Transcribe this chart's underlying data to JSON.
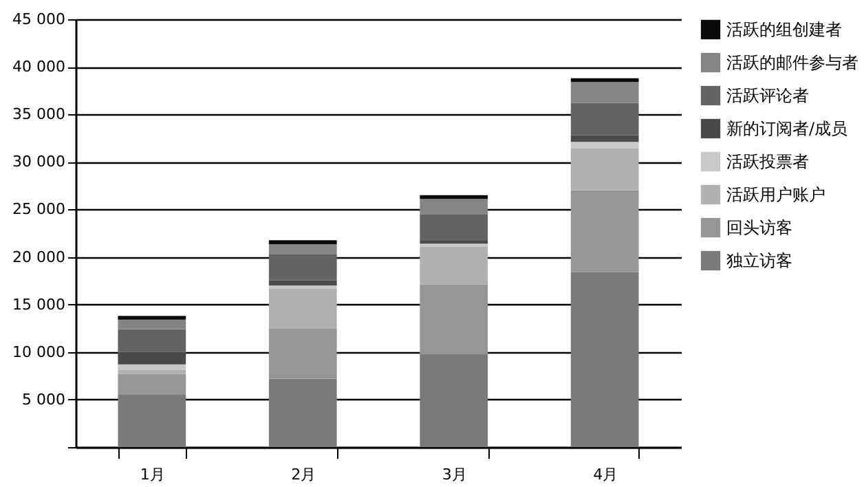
{
  "chart_data": {
    "type": "bar",
    "stacked": true,
    "categories": [
      "1月",
      "2月",
      "3月",
      "4月"
    ],
    "series": [
      {
        "name": "独立访客",
        "color": "#7a7a7a",
        "values": [
          5500,
          7200,
          9800,
          18400
        ]
      },
      {
        "name": "回头访客",
        "color": "#969696",
        "values": [
          2200,
          5300,
          7300,
          8600
        ]
      },
      {
        "name": "活跃用户账户",
        "color": "#b0b0b0",
        "values": [
          400,
          4200,
          4000,
          4400
        ]
      },
      {
        "name": "活跃投票者",
        "color": "#c8c8c8",
        "values": [
          600,
          300,
          300,
          700
        ]
      },
      {
        "name": "新的订阅者/成员",
        "color": "#4a4a4a",
        "values": [
          1300,
          550,
          300,
          700
        ]
      },
      {
        "name": "活跃评论者",
        "color": "#636363",
        "values": [
          2400,
          2700,
          2800,
          3400
        ]
      },
      {
        "name": "活跃的邮件参与者",
        "color": "#858585",
        "values": [
          1000,
          1100,
          1600,
          2200
        ]
      },
      {
        "name": "活跃的组创建者",
        "color": "#0a0a0a",
        "values": [
          400,
          400,
          400,
          400
        ]
      }
    ],
    "ylim": [
      0,
      45000
    ],
    "yticks": [
      {
        "value": 0,
        "label": null
      },
      {
        "value": 5000,
        "label": "5 000"
      },
      {
        "value": 10000,
        "label": "10 000"
      },
      {
        "value": 15000,
        "label": "15 000"
      },
      {
        "value": 20000,
        "label": "20 000"
      },
      {
        "value": 25000,
        "label": "25 000"
      },
      {
        "value": 30000,
        "label": "30 000"
      },
      {
        "value": 35000,
        "label": "35 000"
      },
      {
        "value": 40000,
        "label": "40 000"
      },
      {
        "value": 45000,
        "label": "45 000"
      }
    ],
    "grid": "y",
    "legend": "right"
  }
}
